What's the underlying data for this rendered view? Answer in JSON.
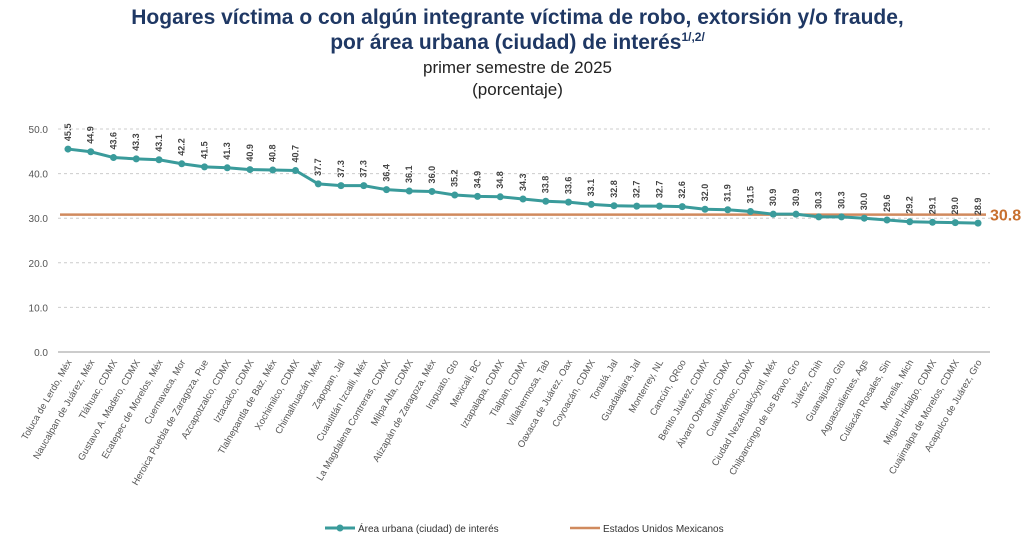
{
  "chart_data": {
    "type": "line",
    "title_line1": "Hogares víctima o con algún integrante víctima de robo, extorsión y/o fraude,",
    "title_line2": "por área urbana (ciudad) de interés",
    "title_sup": "1/,2/",
    "subtitle": "primer semestre de 2025",
    "unit": "(porcentaje)",
    "ylim": [
      0,
      50
    ],
    "yticks": [
      "0.0",
      "10.0",
      "20.0",
      "30.0",
      "40.0",
      "50.0"
    ],
    "grid": true,
    "legend_position": "bottom",
    "categories": [
      "Toluca de Lerdo, Méx",
      "Naucalpan de Juárez, Méx",
      "Tláhuac, CDMX",
      "Gustavo A. Madero, CDMX",
      "Ecatepec de Morelos, Méx",
      "Cuernavaca, Mor",
      "Heroica Puebla de Zaragoza, Pue",
      "Azcapotzalco, CDMX",
      "Iztacalco, CDMX",
      "Tlalnepantla de Baz, Méx",
      "Xochimilco, CDMX",
      "Chimalhuacán, Méx",
      "Zapopan, Jal",
      "Cuautitlán Izcalli, Méx",
      "La Magdalena Contreras, CDMX",
      "Milpa Alta, CDMX",
      "Atizapán de Zaragoza, Méx",
      "Irapuato, Gto",
      "Mexicali, BC",
      "Iztapalapa, CDMX",
      "Tlalpan, CDMX",
      "Villahermosa, Tab",
      "Oaxaca de Juárez, Oax",
      "Coyoacán, CDMX",
      "Tonalá, Jal",
      "Guadalajara, Jal",
      "Monterrey, NL",
      "Cancún, QRoo",
      "Benito Juárez, CDMX",
      "Álvaro Obregón, CDMX",
      "Cuauhtémoc, CDMX",
      "Ciudad Nezahualcóyotl, Méx",
      "Chilpancingo de los Bravo, Gro",
      "Juárez, Chih",
      "Guanajuato, Gto",
      "Aguascalientes, Ags",
      "Culiacán Rosales, Sin",
      "Morelia, Mich",
      "Miguel Hidalgo, CDMX",
      "Cuajimalpa de Morelos, CDMX",
      "Acapulco de Juárez, Gro"
    ],
    "series": [
      {
        "name": "Área urbana (ciudad) de interés",
        "color": "#3a9b9b",
        "values": [
          45.5,
          44.9,
          43.6,
          43.3,
          43.1,
          42.2,
          41.5,
          41.3,
          40.9,
          40.8,
          40.7,
          37.7,
          37.3,
          37.3,
          36.4,
          36.1,
          36.0,
          35.2,
          34.9,
          34.8,
          34.3,
          33.8,
          33.6,
          33.1,
          32.8,
          32.7,
          32.7,
          32.6,
          32.0,
          31.9,
          31.5,
          30.9,
          30.9,
          30.3,
          30.3,
          30.0,
          29.6,
          29.2,
          29.1,
          29.0,
          28.9
        ]
      },
      {
        "name": "Estados Unidos Mexicanos",
        "color": "#d08a5e",
        "value": 30.8,
        "label": "30.8"
      }
    ]
  }
}
